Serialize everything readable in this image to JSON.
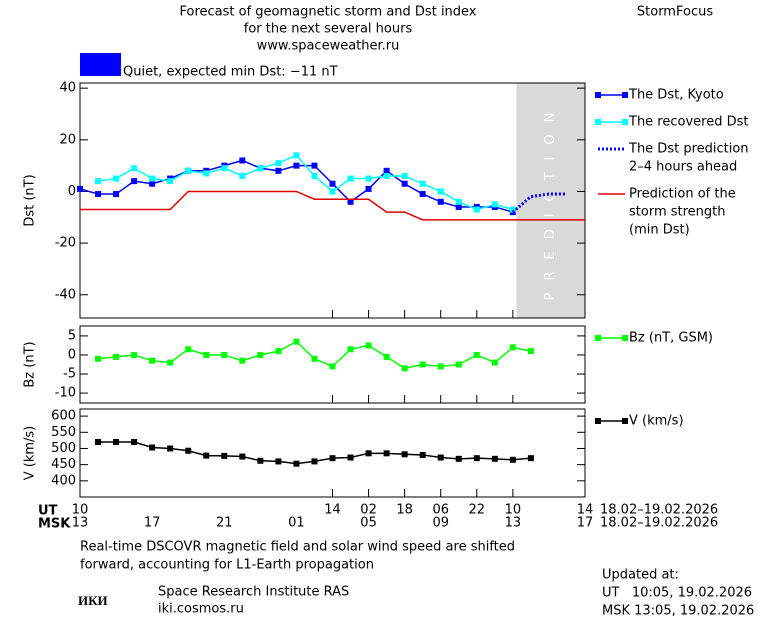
{
  "header": {
    "lines": [
      "Forecast of geomagnetic storm and Dst index",
      "for the next several hours",
      "www.spaceweather.ru"
    ],
    "brand": "StormFocus",
    "status": {
      "color": "#0000ff",
      "label": "Quiet, expected min Dst: −11 nT"
    }
  },
  "chart_data": [
    {
      "type": "line",
      "ylabel": "Dst (nT)",
      "xlim": [
        0,
        28
      ],
      "ylim": [
        -49,
        42
      ],
      "yticks": [
        40,
        20,
        0,
        -20,
        -40
      ],
      "prediction_band": {
        "xlim": [
          24.2,
          28
        ],
        "label": "PREDICTION",
        "color": "#d9d9d9"
      },
      "series": [
        {
          "name": [
            "The Dst, Kyoto"
          ],
          "color": "#0000ff",
          "style": "solid-markers",
          "x": [
            0,
            1,
            2,
            3,
            4,
            5,
            6,
            7,
            8,
            9,
            10,
            11,
            12,
            13,
            14,
            15,
            16,
            17,
            18,
            19,
            20,
            21,
            22,
            23,
            24
          ],
          "values": [
            1,
            -1,
            -1,
            4,
            3,
            5,
            8,
            8,
            10,
            12,
            9,
            8,
            10,
            10,
            3,
            -4,
            1,
            8,
            3,
            -1,
            -4,
            -6,
            -6,
            -6,
            -8
          ]
        },
        {
          "name": [
            "The recovered Dst"
          ],
          "color": "#00ffff",
          "style": "solid-markers",
          "x": [
            1,
            2,
            3,
            4,
            5,
            6,
            7,
            8,
            9,
            10,
            11,
            12,
            13,
            14,
            15,
            16,
            17,
            18,
            19,
            20,
            21,
            22,
            23,
            24
          ],
          "values": [
            4,
            5,
            9,
            5,
            4,
            8,
            7,
            9,
            6,
            9,
            11,
            14,
            6,
            0,
            5,
            5,
            6,
            6,
            3,
            0,
            -4,
            -7,
            -5,
            -7
          ]
        },
        {
          "name": [
            "The Dst prediction",
            "2–4 hours ahead"
          ],
          "color": "#0000ff",
          "style": "dotted",
          "x": [
            24,
            25,
            26,
            27
          ],
          "values": [
            -8,
            -2,
            -1,
            -1
          ]
        },
        {
          "name": [
            "Prediction of the",
            "storm strength",
            "(min Dst)"
          ],
          "color": "#e00000",
          "style": "solid",
          "x": [
            0,
            5,
            6,
            12,
            13,
            16,
            17,
            18,
            19,
            28
          ],
          "values": [
            -7,
            -7,
            0,
            0,
            -3,
            -3,
            -8,
            -8,
            -11,
            -11
          ]
        }
      ]
    },
    {
      "type": "line",
      "ylabel": "Bz (nT)",
      "xlim": [
        0,
        28
      ],
      "ylim": [
        -12.6,
        7.6
      ],
      "yticks": [
        5,
        0,
        -5,
        -10
      ],
      "series": [
        {
          "name": [
            "Bz (nT, GSM)"
          ],
          "color": "#00ff00",
          "style": "solid-markers",
          "x": [
            1,
            2,
            3,
            4,
            5,
            6,
            7,
            8,
            9,
            10,
            11,
            12,
            13,
            14,
            15,
            16,
            17,
            18,
            19,
            20,
            21,
            22,
            23,
            24,
            25
          ],
          "values": [
            -1,
            -0.5,
            0,
            -1.5,
            -2,
            1.5,
            0,
            0,
            -1.5,
            0,
            1,
            3.5,
            -1,
            -3,
            1.5,
            2.5,
            -0.5,
            -3.5,
            -2.5,
            -3,
            -2.5,
            0,
            -2,
            2,
            1
          ]
        }
      ]
    },
    {
      "type": "line",
      "ylabel": "V (km/s)",
      "xlim": [
        0,
        28
      ],
      "ylim": [
        350,
        622
      ],
      "yticks": [
        600,
        550,
        500,
        450,
        400
      ],
      "xticks": [
        {
          "value": 0,
          "label": "10"
        },
        14,
        18,
        22,
        {
          "value": 16,
          "label": "02"
        },
        {
          "value": 20,
          "label": "06"
        },
        {
          "value": 24,
          "label": "10"
        },
        {
          "value": 28,
          "label": "14"
        }
      ],
      "x2ticks": [
        {
          "value": 0,
          "label": "13"
        },
        {
          "value": 4,
          "label": "17"
        },
        {
          "value": 8,
          "label": "21"
        },
        {
          "value": 12,
          "label": "01"
        },
        {
          "value": 16,
          "label": "05"
        },
        {
          "value": 20,
          "label": "09"
        },
        {
          "value": 24,
          "label": "13"
        },
        {
          "value": 28,
          "label": "17"
        }
      ],
      "xaxis_names": [
        "UT",
        "MSK"
      ],
      "date_range": [
        "18.02–19.02.2026",
        "18.02–19.02.2026"
      ],
      "series": [
        {
          "name": [
            "V (km/s)"
          ],
          "color": "#000000",
          "style": "solid-markers",
          "x": [
            1,
            2,
            3,
            4,
            5,
            6,
            7,
            8,
            9,
            10,
            11,
            12,
            13,
            14,
            15,
            16,
            17,
            18,
            19,
            20,
            21,
            22,
            23,
            24,
            25
          ],
          "values": [
            520,
            520,
            520,
            503,
            500,
            493,
            478,
            477,
            475,
            462,
            460,
            453,
            460,
            470,
            472,
            485,
            485,
            482,
            480,
            472,
            468,
            470,
            468,
            465,
            470
          ]
        }
      ]
    }
  ],
  "footer": {
    "note": [
      "Real-time DSCOVR magnetic field and solar wind speed are shifted",
      "forward, accounting for L1-Earth propagation"
    ],
    "logo": "ИКИ",
    "institute": "Space Research Institute RAS",
    "url": "iki.cosmos.ru",
    "updated": [
      "Updated at:",
      "UT   10:05, 19.02.2026",
      "MSK 13:05, 19.02.2026"
    ]
  }
}
